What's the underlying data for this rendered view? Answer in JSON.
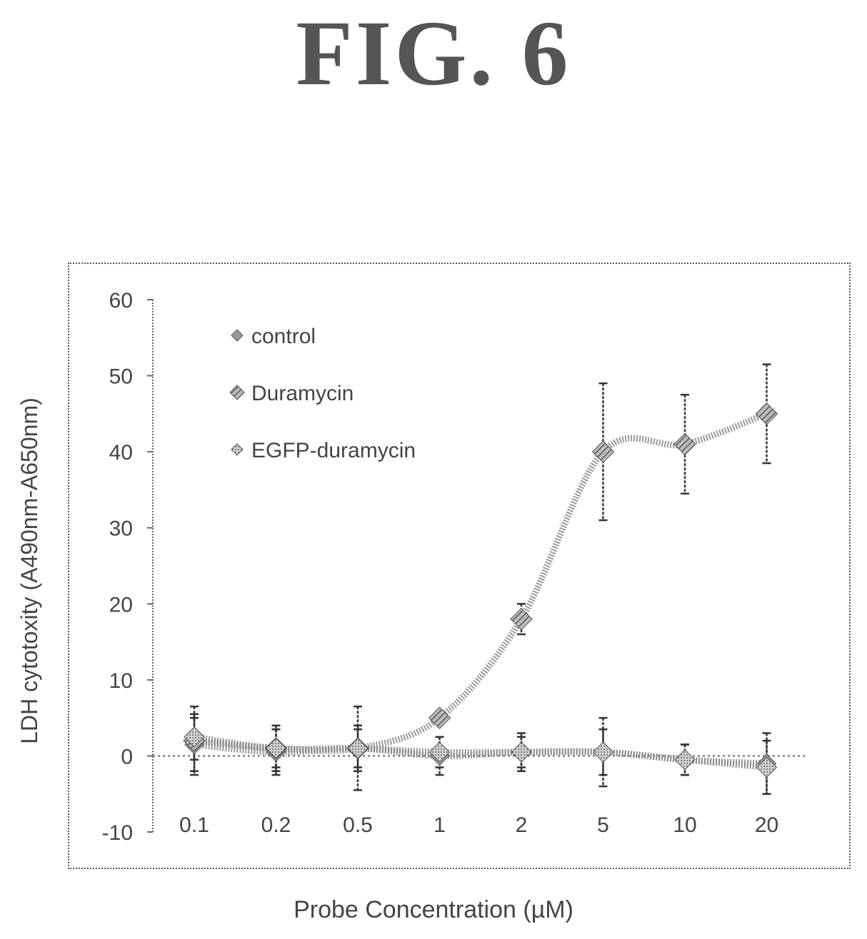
{
  "figure_title": "FIG. 6",
  "chart_data": {
    "type": "line",
    "x_title": "Probe Concentration (µM)",
    "y_title": "LDH cytotoxity (A490nm-A650nm)",
    "categories": [
      "0.1",
      "0.2",
      "0.5",
      "1",
      "2",
      "5",
      "10",
      "20"
    ],
    "yticks": [
      -10,
      0,
      10,
      20,
      30,
      40,
      50,
      60
    ],
    "ylim": [
      -10,
      60
    ],
    "legend_position": "top-left",
    "series": [
      {
        "name": "control",
        "marker": "diamond",
        "values": [
          1.5,
          0.5,
          1.0,
          0.0,
          0.5,
          0.5,
          -0.5,
          -1.0
        ],
        "errors": [
          3.5,
          3.0,
          3.0,
          2.5,
          2.5,
          4.5,
          2.0,
          4.0
        ]
      },
      {
        "name": "Duramycin",
        "marker": "hatched-diamond",
        "values": [
          2.0,
          1.0,
          1.0,
          5.0,
          18.0,
          40.0,
          41.0,
          45.0
        ],
        "errors": [
          4.5,
          3.0,
          5.5,
          0.0,
          2.0,
          9.0,
          6.5,
          6.5
        ]
      },
      {
        "name": "EGFP-duramycin",
        "marker": "diamond",
        "values": [
          2.5,
          1.0,
          1.0,
          0.5,
          0.5,
          0.5,
          -0.5,
          -1.5
        ],
        "errors": [
          3.0,
          2.5,
          2.5,
          2.0,
          2.0,
          3.0,
          2.0,
          3.5
        ]
      }
    ]
  }
}
